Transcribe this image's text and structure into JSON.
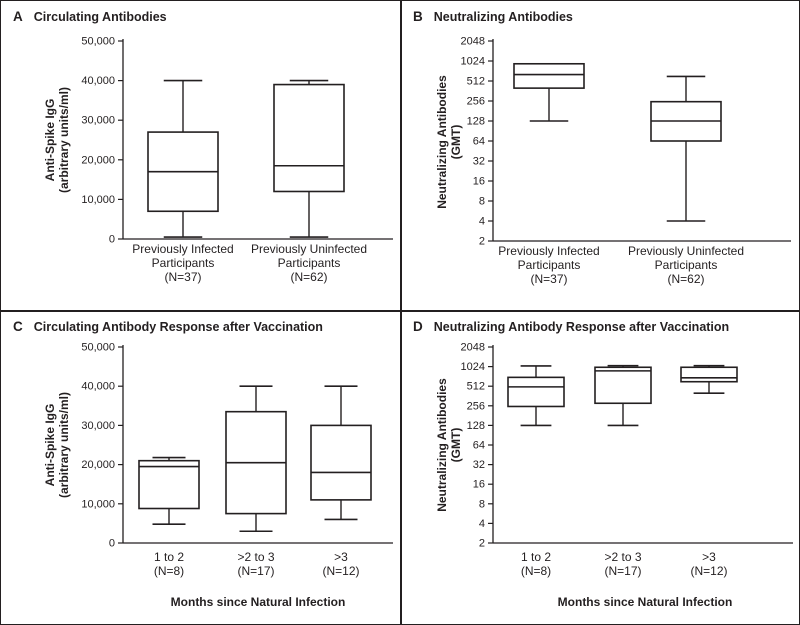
{
  "figure": {
    "background": "#ffffff",
    "line_color": "#231f20",
    "box_fill": "#ffffff"
  },
  "chart_data": [
    {
      "id": "A",
      "panel_label": "A",
      "title": "Circulating Antibodies",
      "type": "box",
      "scale": "linear",
      "ylim": [
        0,
        50000
      ],
      "yticks": [
        {
          "value": 0,
          "label": "0"
        },
        {
          "value": 10000,
          "label": "10,000"
        },
        {
          "value": 20000,
          "label": "20,000"
        },
        {
          "value": 30000,
          "label": "30,000"
        },
        {
          "value": 40000,
          "label": "40,000"
        },
        {
          "value": 50000,
          "label": "50,000"
        }
      ],
      "ylabel_line1": "Anti-Spike IgG",
      "ylabel_line2": "(arbitrary units/ml)",
      "xlabel": "",
      "categories": [
        {
          "label_lines": [
            "Previously Infected",
            "Participants",
            "(N=37)"
          ],
          "box": {
            "low": 500,
            "q1": 7000,
            "median": 17000,
            "q3": 27000,
            "high": 40000
          }
        },
        {
          "label_lines": [
            "Previously Uninfected",
            "Participants",
            "(N=62)"
          ],
          "box": {
            "low": 500,
            "q1": 12000,
            "median": 18500,
            "q3": 39000,
            "high": 40000
          }
        }
      ]
    },
    {
      "id": "B",
      "panel_label": "B",
      "title": "Neutralizing Antibodies",
      "type": "box",
      "scale": "log2",
      "ylim": [
        2,
        2048
      ],
      "yticks": [
        {
          "value": 2048,
          "label": "2048"
        },
        {
          "value": 1024,
          "label": "1024"
        },
        {
          "value": 512,
          "label": "512"
        },
        {
          "value": 256,
          "label": "256"
        },
        {
          "value": 128,
          "label": "128"
        },
        {
          "value": 64,
          "label": "64"
        },
        {
          "value": 32,
          "label": "32"
        },
        {
          "value": 16,
          "label": "16"
        },
        {
          "value": 8,
          "label": "8"
        },
        {
          "value": 4,
          "label": "4"
        },
        {
          "value": 2,
          "label": "2"
        }
      ],
      "ylabel_line1": "Neutralizing Antibodies",
      "ylabel_line2": "(GMT)",
      "xlabel": "",
      "categories": [
        {
          "label_lines": [
            "Previously Infected",
            "Participants",
            "(N=37)"
          ],
          "box": {
            "low": 128,
            "q1": 400,
            "median": 640,
            "q3": 930,
            "high": 930
          }
        },
        {
          "label_lines": [
            "Previously Uninfected",
            "Participants",
            "(N=62)"
          ],
          "box": {
            "low": 4,
            "q1": 64,
            "median": 128,
            "q3": 250,
            "high": 600
          }
        }
      ]
    },
    {
      "id": "C",
      "panel_label": "C",
      "title": "Circulating Antibody Response after Vaccination",
      "type": "box",
      "scale": "linear",
      "ylim": [
        0,
        50000
      ],
      "yticks": [
        {
          "value": 0,
          "label": "0"
        },
        {
          "value": 10000,
          "label": "10,000"
        },
        {
          "value": 20000,
          "label": "20,000"
        },
        {
          "value": 30000,
          "label": "30,000"
        },
        {
          "value": 40000,
          "label": "40,000"
        },
        {
          "value": 50000,
          "label": "50,000"
        }
      ],
      "ylabel_line1": "Anti-Spike IgG",
      "ylabel_line2": "(arbitrary units/ml)",
      "xlabel": "Months since Natural Infection",
      "categories": [
        {
          "label_lines": [
            "1 to 2",
            "(N=8)"
          ],
          "box": {
            "low": 4800,
            "q1": 8800,
            "median": 19500,
            "q3": 21000,
            "high": 21800
          }
        },
        {
          "label_lines": [
            ">2 to 3",
            "(N=17)"
          ],
          "box": {
            "low": 3000,
            "q1": 7500,
            "median": 20500,
            "q3": 33500,
            "high": 40000
          }
        },
        {
          "label_lines": [
            ">3",
            "(N=12)"
          ],
          "box": {
            "low": 6000,
            "q1": 11000,
            "median": 18000,
            "q3": 30000,
            "high": 40000
          }
        }
      ]
    },
    {
      "id": "D",
      "panel_label": "D",
      "title": "Neutralizing Antibody Response after Vaccination",
      "type": "box",
      "scale": "log2",
      "ylim": [
        2,
        2048
      ],
      "yticks": [
        {
          "value": 2048,
          "label": "2048"
        },
        {
          "value": 1024,
          "label": "1024"
        },
        {
          "value": 512,
          "label": "512"
        },
        {
          "value": 256,
          "label": "256"
        },
        {
          "value": 128,
          "label": "128"
        },
        {
          "value": 64,
          "label": "64"
        },
        {
          "value": 32,
          "label": "32"
        },
        {
          "value": 16,
          "label": "16"
        },
        {
          "value": 8,
          "label": "8"
        },
        {
          "value": 4,
          "label": "4"
        },
        {
          "value": 2,
          "label": "2"
        }
      ],
      "ylabel_line1": "Neutralizing Antibodies",
      "ylabel_line2": "(GMT)",
      "xlabel": "Months since Natural Infection",
      "categories": [
        {
          "label_lines": [
            "1 to 2",
            "(N=8)"
          ],
          "box": {
            "low": 128,
            "q1": 250,
            "median": 500,
            "q3": 700,
            "high": 1050
          }
        },
        {
          "label_lines": [
            ">2 to 3",
            "(N=17)"
          ],
          "box": {
            "low": 128,
            "q1": 280,
            "median": 880,
            "q3": 1000,
            "high": 1060
          }
        },
        {
          "label_lines": [
            ">3",
            "(N=12)"
          ],
          "box": {
            "low": 400,
            "q1": 600,
            "median": 690,
            "q3": 1000,
            "high": 1060
          }
        }
      ]
    }
  ]
}
